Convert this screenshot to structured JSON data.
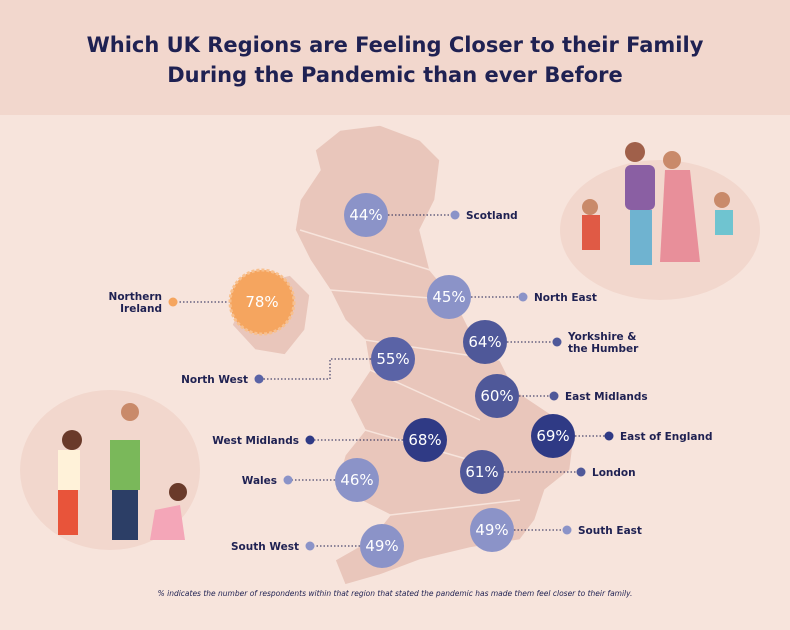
{
  "title": [
    "Which UK Regions are Feeling Closer to their Family",
    "During the Pandemic than ever Before"
  ],
  "regions": [
    {
      "name": [
        "Scotland"
      ],
      "value": 44,
      "label": "44%",
      "color": "#8b93c8"
    },
    {
      "name": [
        "North East"
      ],
      "value": 45,
      "label": "45%",
      "color": "#8b93c8"
    },
    {
      "name": [
        "Northern",
        "Ireland"
      ],
      "value": 78,
      "label": "78%",
      "color": "#f5a55f"
    },
    {
      "name": [
        "Yorkshire &",
        "the Humber"
      ],
      "value": 64,
      "label": "64%",
      "color": "#4f5899"
    },
    {
      "name": [
        "North West"
      ],
      "value": 55,
      "label": "55%",
      "color": "#5a63a6"
    },
    {
      "name": [
        "East Midlands"
      ],
      "value": 60,
      "label": "60%",
      "color": "#4f5899"
    },
    {
      "name": [
        "West Midlands"
      ],
      "value": 68,
      "label": "68%",
      "color": "#2f3a85"
    },
    {
      "name": [
        "East of England"
      ],
      "value": 69,
      "label": "69%",
      "color": "#2f3a85"
    },
    {
      "name": [
        "Wales"
      ],
      "value": 46,
      "label": "46%",
      "color": "#8b93c8"
    },
    {
      "name": [
        "London"
      ],
      "value": 61,
      "label": "61%",
      "color": "#4f5899"
    },
    {
      "name": [
        "South East"
      ],
      "value": 49,
      "label": "49%",
      "color": "#8b93c8"
    },
    {
      "name": [
        "South West"
      ],
      "value": 49,
      "label": "49%",
      "color": "#8b93c8"
    }
  ],
  "footnote": "% indicates the number of respondents within that region that stated the pandemic has made them feel closer to their family."
}
